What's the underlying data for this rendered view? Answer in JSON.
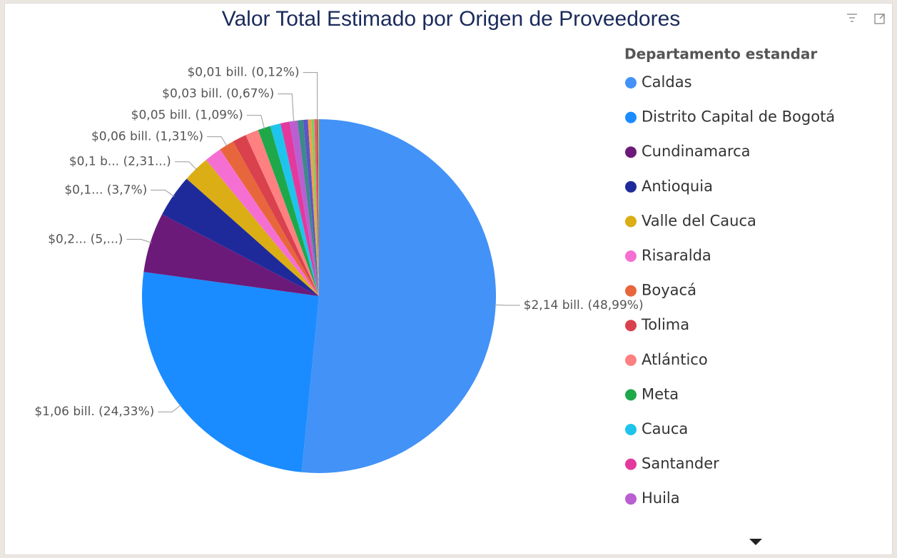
{
  "chart_data": {
    "type": "pie",
    "title": "Valor Total Estimado por Origen de Proveedores",
    "legend_title": "Departamento estandar",
    "legend": "right",
    "categories": [
      "Caldas",
      "Distrito Capital de Bogotá",
      "Cundinamarca",
      "Antioquia",
      "Valle del Cauca",
      "Risaralda",
      "Boyacá",
      "Tolima",
      "Atlántico",
      "Meta",
      "Cauca",
      "Santander",
      "Huila",
      null,
      null,
      null,
      null,
      null,
      null,
      null
    ],
    "values": [
      48.99,
      24.33,
      5.2,
      3.7,
      2.31,
      1.5,
      1.31,
      1.2,
      1.15,
      1.09,
      0.9,
      0.8,
      0.67,
      0.5,
      0.4,
      0.3,
      0.25,
      0.2,
      0.12,
      0.08
    ],
    "value_labels": [
      "$2,14 bill. (48,99%)",
      "$1,06 bill. (24,33%)",
      "$0,2... (5,...)",
      "$0,1... (3,7%)",
      "$0,1 b... (2,31...)",
      null,
      "$0,06 bill. (1,31%)",
      null,
      null,
      "$0,05 bill. (1,09%)",
      null,
      null,
      "$0,03 bill. (0,67%)",
      null,
      null,
      null,
      null,
      null,
      "$0,01 bill. (0,12%)",
      null
    ],
    "colors": [
      "#4292f7",
      "#1a8cff",
      "#6b1a7a",
      "#1f2a9a",
      "#dbae16",
      "#f56fd3",
      "#e8663b",
      "#d9414d",
      "#fe8080",
      "#1ea84a",
      "#1ec4ec",
      "#e3399d",
      "#b95fd1",
      "#3c8a8a",
      "#5a55c8",
      "#f0a04b",
      "#7fcf5a",
      "#ff4f8b",
      "#a05020",
      "#d0c030"
    ]
  }
}
